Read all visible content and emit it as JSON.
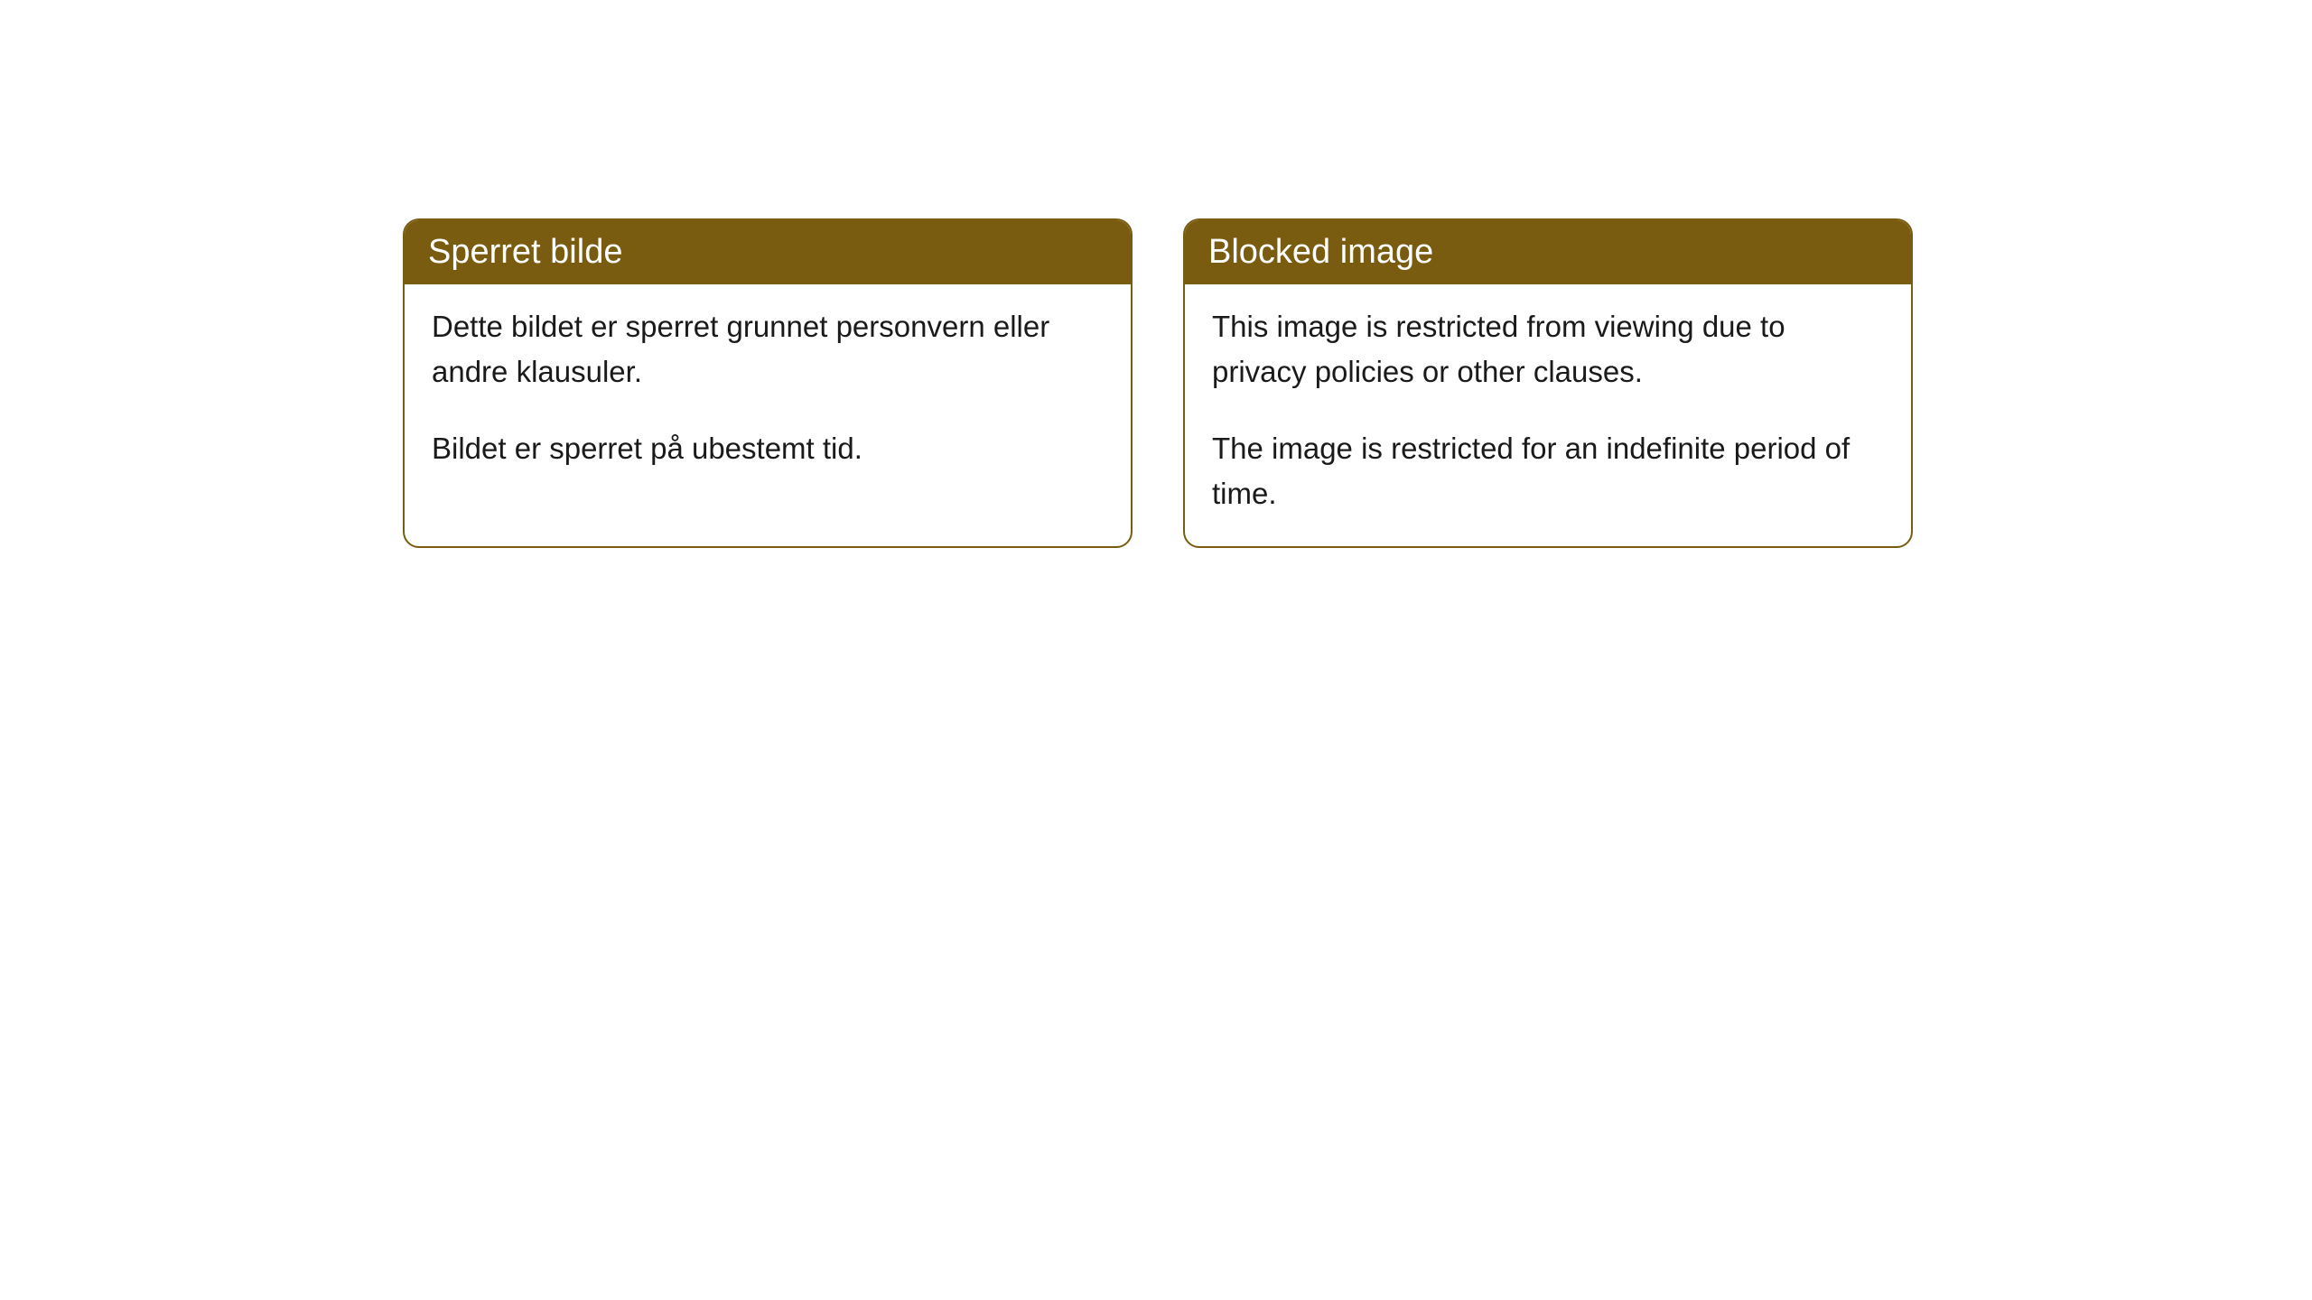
{
  "cards": [
    {
      "title": "Sperret bilde",
      "paragraph1": "Dette bildet er sperret grunnet personvern eller andre klausuler.",
      "paragraph2": "Bildet er sperret på ubestemt tid."
    },
    {
      "title": "Blocked image",
      "paragraph1": "This image is restricted from viewing due to privacy policies or other clauses.",
      "paragraph2": "The image is restricted for an indefinite period of time."
    }
  ],
  "styling": {
    "header_bg_color": "#7a5c11",
    "header_text_color": "#ffffff",
    "border_color": "#7a5c11",
    "body_text_color": "#1a1a1a",
    "card_bg_color": "#ffffff",
    "page_bg_color": "#ffffff",
    "border_radius": 18,
    "header_fontsize": 38,
    "body_fontsize": 33
  }
}
